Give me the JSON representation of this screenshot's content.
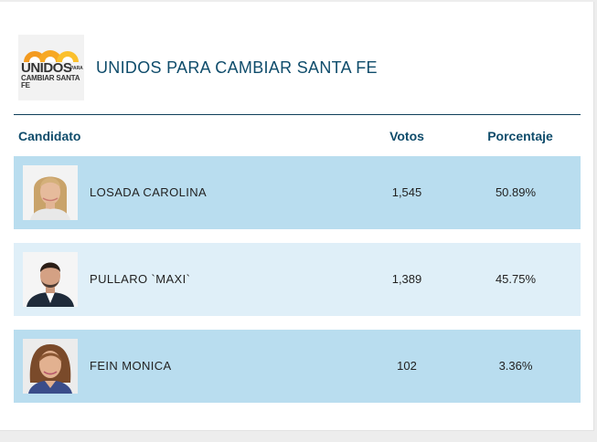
{
  "party": {
    "logo_text_main": "UNIDOS",
    "logo_text_small": "PARA",
    "logo_text_sub": "CAMBIAR SANTA FE",
    "title": "UNIDOS PARA CAMBIAR SANTA FE"
  },
  "table": {
    "headers": {
      "candidate": "Candidato",
      "votes": "Votos",
      "percentage": "Porcentaje"
    },
    "rows": [
      {
        "name": "LOSADA CAROLINA",
        "votes": "1,545",
        "percentage": "50.89%"
      },
      {
        "name": "PULLARO `MAXI`",
        "votes": "1,389",
        "percentage": "45.75%"
      },
      {
        "name": "FEIN MONICA",
        "votes": "102",
        "percentage": "3.36%"
      }
    ]
  },
  "colors": {
    "title": "#0f4c6b",
    "row_dark": "#b9ddef",
    "row_light": "#dfeff8",
    "logo_orange": "#f39a1f",
    "logo_yellow": "#fbc02d"
  }
}
